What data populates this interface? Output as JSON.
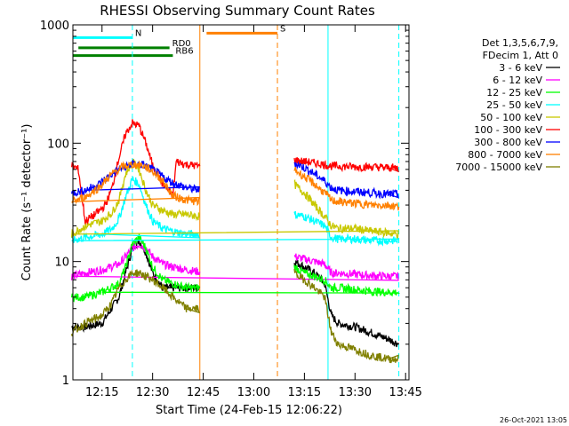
{
  "chart_data": {
    "type": "line",
    "title": "RHESSI Observing Summary Count Rates",
    "xlabel": "Start Time (24-Feb-15 12:06:22)",
    "ylabel": "Count Rate (s⁻¹ detector⁻¹)",
    "y_scale": "log",
    "ylim": [
      1,
      1000
    ],
    "xlim": [
      "12:06:22",
      "13:46:00"
    ],
    "x_ticks": [
      "12:15",
      "12:30",
      "12:45",
      "13:00",
      "13:15",
      "13:30",
      "13:45"
    ],
    "y_ticks": [
      "1",
      "10",
      "100",
      "1000"
    ],
    "legend_title": [
      "Det 1,3,5,6,7,9,",
      "FDecim 1, Att 0"
    ],
    "legend_position": "right",
    "timestamp": "26-Oct-2021 13:05",
    "gaps": [
      [
        "12:46",
        "13:11"
      ]
    ],
    "annotations": [
      {
        "label": "N",
        "color": "#00ffff",
        "start": "12:06",
        "end": "12:24",
        "level": 780
      },
      {
        "label": "RD0",
        "color": "#008000",
        "start": "12:08",
        "end": "12:35",
        "level": 640
      },
      {
        "label": "S",
        "color": "#ff8000",
        "start": "12:46",
        "end": "13:07",
        "level": 850
      },
      {
        "label": "RB6",
        "color": "#008000",
        "start": "12:06",
        "end": "12:36",
        "level": 550
      }
    ],
    "markers": [
      {
        "time": "12:24",
        "color": "#00ffff",
        "style": "dashed"
      },
      {
        "time": "12:44",
        "color": "#ff8000",
        "style": "solid"
      },
      {
        "time": "13:07",
        "color": "#ff8000",
        "style": "dashed"
      },
      {
        "time": "13:22",
        "color": "#00ffff",
        "style": "solid"
      },
      {
        "time": "13:43",
        "color": "#00ffff",
        "style": "dashed"
      }
    ],
    "series": [
      {
        "name": "3 - 6 keV",
        "color": "#000000",
        "x": [
          "12:06",
          "12:10",
          "12:15",
          "12:20",
          "12:22",
          "12:24",
          "12:26",
          "12:28",
          "12:30",
          "12:33",
          "12:36",
          "12:40",
          "12:44",
          "13:12",
          "13:15",
          "13:18",
          "13:21",
          "13:23",
          "13:25",
          "13:30",
          "13:35",
          "13:40",
          "13:43"
        ],
        "values": [
          2.8,
          2.8,
          3,
          5,
          8,
          13,
          15,
          12,
          8,
          6,
          6,
          6,
          6,
          10,
          9,
          8,
          6.5,
          3.5,
          3,
          2.8,
          2.5,
          2.2,
          2
        ]
      },
      {
        "name": "6 - 12 keV",
        "color": "#ff00ff",
        "x": [
          "12:06",
          "12:10",
          "12:15",
          "12:20",
          "12:22",
          "12:24",
          "12:26",
          "12:28",
          "12:30",
          "12:33",
          "12:36",
          "12:40",
          "12:44",
          "13:12",
          "13:15",
          "13:18",
          "13:21",
          "13:23",
          "13:25",
          "13:30",
          "13:35",
          "13:40",
          "13:43"
        ],
        "values": [
          7.5,
          8,
          8.5,
          9.5,
          11,
          13,
          14,
          13,
          11,
          9.5,
          9,
          8.5,
          8.2,
          11,
          10.5,
          10,
          9.5,
          8,
          8,
          7.8,
          7.6,
          7.5,
          7.5
        ]
      },
      {
        "name": "12 - 25 keV",
        "color": "#00ff00",
        "x": [
          "12:06",
          "12:10",
          "12:15",
          "12:20",
          "12:22",
          "12:24",
          "12:26",
          "12:28",
          "12:30",
          "12:33",
          "12:36",
          "12:40",
          "12:44",
          "13:12",
          "13:15",
          "13:18",
          "13:21",
          "13:23",
          "13:25",
          "13:30",
          "13:35",
          "13:40",
          "13:43"
        ],
        "values": [
          5,
          5,
          5.5,
          6.5,
          9,
          14,
          16,
          13,
          9,
          7,
          6.5,
          6,
          6,
          9,
          8,
          7.5,
          7,
          6,
          6,
          5.8,
          5.6,
          5.5,
          5.5
        ]
      },
      {
        "name": "25 - 50 keV",
        "color": "#00ffff",
        "x": [
          "12:06",
          "12:10",
          "12:15",
          "12:18",
          "12:20",
          "12:22",
          "12:24",
          "12:26",
          "12:28",
          "12:30",
          "12:33",
          "12:36",
          "12:40",
          "12:44",
          "13:12",
          "13:15",
          "13:18",
          "13:21",
          "13:23",
          "13:25",
          "13:30",
          "13:35",
          "13:40",
          "13:43"
        ],
        "values": [
          15,
          16,
          17,
          19,
          23,
          35,
          50,
          45,
          30,
          22,
          19,
          18,
          17,
          17,
          25,
          24,
          22,
          20,
          16,
          15.5,
          15.5,
          15,
          15,
          15
        ]
      },
      {
        "name": "50 - 100 keV",
        "color": "#c8c800",
        "x": [
          "12:06",
          "12:10",
          "12:15",
          "12:18",
          "12:20",
          "12:22",
          "12:24",
          "12:26",
          "12:28",
          "12:30",
          "12:33",
          "12:36",
          "12:40",
          "12:44",
          "13:12",
          "13:15",
          "13:18",
          "13:21",
          "13:23",
          "13:25",
          "13:30",
          "13:35",
          "13:40",
          "13:43"
        ],
        "values": [
          17,
          20,
          22,
          26,
          33,
          55,
          70,
          60,
          40,
          30,
          27,
          25,
          25,
          24,
          45,
          38,
          30,
          24,
          20,
          19,
          19,
          18,
          17.5,
          17
        ]
      },
      {
        "name": "100 - 300 keV",
        "color": "#ff0000",
        "x": [
          "12:06",
          "12:08",
          "12:10",
          "12:13",
          "12:16",
          "12:18",
          "12:20",
          "12:22",
          "12:24",
          "12:26",
          "12:28",
          "12:30",
          "12:33",
          "12:36",
          "12:37",
          "12:40",
          "12:44",
          "13:12",
          "13:15",
          "13:18",
          "13:21",
          "13:23",
          "13:25",
          "13:30",
          "13:35",
          "13:40",
          "13:43"
        ],
        "values": [
          65,
          60,
          22,
          25,
          30,
          42,
          75,
          120,
          148,
          140,
          100,
          65,
          45,
          36,
          70,
          66,
          64,
          72,
          70,
          68,
          66,
          64,
          64,
          63,
          63,
          62,
          62
        ]
      },
      {
        "name": "300 - 800 keV",
        "color": "#0000ff",
        "x": [
          "12:06",
          "12:10",
          "12:14",
          "12:18",
          "12:21",
          "12:24",
          "12:27",
          "12:30",
          "12:33",
          "12:36",
          "12:40",
          "12:44",
          "13:12",
          "13:15",
          "13:18",
          "13:21",
          "13:23",
          "13:25",
          "13:30",
          "13:35",
          "13:40",
          "13:43"
        ],
        "values": [
          38,
          40,
          45,
          55,
          62,
          66,
          66,
          60,
          52,
          46,
          42,
          40,
          68,
          62,
          55,
          48,
          42,
          40,
          39,
          38,
          37,
          37
        ]
      },
      {
        "name": "800 - 7000 keV",
        "color": "#ff8000",
        "x": [
          "12:06",
          "12:10",
          "12:14",
          "12:18",
          "12:21",
          "12:24",
          "12:27",
          "12:30",
          "12:33",
          "12:36",
          "12:40",
          "12:44",
          "13:12",
          "13:15",
          "13:18",
          "13:21",
          "13:23",
          "13:25",
          "13:30",
          "13:35",
          "13:40",
          "13:43"
        ],
        "values": [
          32,
          35,
          42,
          55,
          63,
          66,
          65,
          58,
          48,
          36,
          33,
          32,
          60,
          52,
          45,
          38,
          33,
          32,
          31,
          30,
          30,
          29
        ]
      },
      {
        "name": "7000 - 15000 keV",
        "color": "#808000",
        "x": [
          "12:06",
          "12:10",
          "12:15",
          "12:18",
          "12:20",
          "12:22",
          "12:24",
          "12:26",
          "12:28",
          "12:30",
          "12:33",
          "12:36",
          "12:40",
          "12:44",
          "13:12",
          "13:15",
          "13:18",
          "13:21",
          "13:23",
          "13:25",
          "13:30",
          "13:35",
          "13:40",
          "13:43"
        ],
        "values": [
          2.5,
          3,
          3.5,
          4.5,
          6,
          7,
          8,
          8,
          7.5,
          7,
          6,
          5,
          4,
          4,
          8,
          7,
          6,
          5,
          2.5,
          2,
          1.8,
          1.6,
          1.5,
          1.5
        ]
      }
    ]
  }
}
